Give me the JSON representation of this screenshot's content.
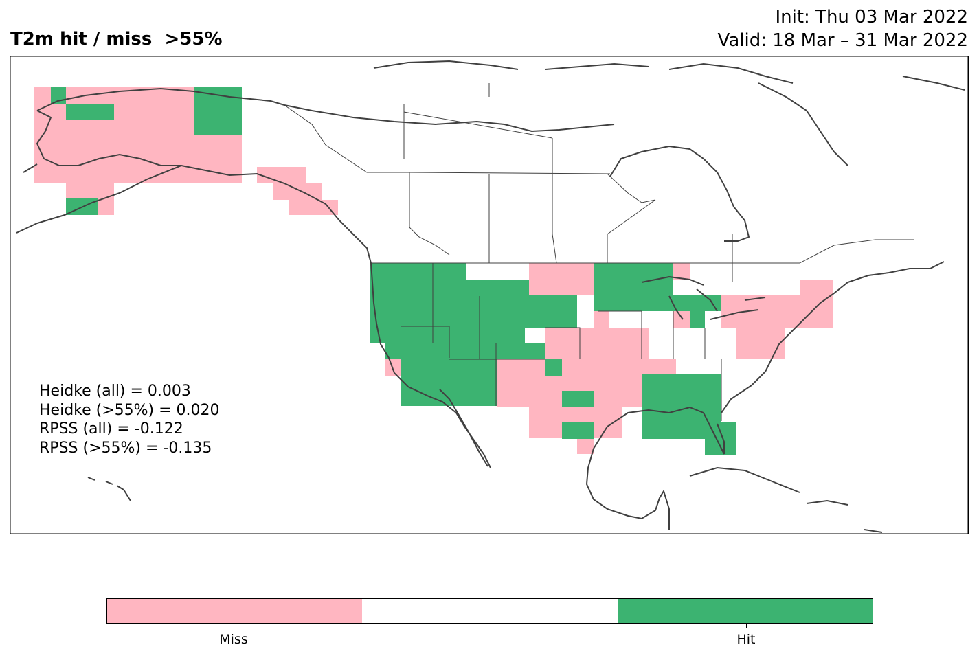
{
  "title": {
    "left": "T2m hit / miss  >55%",
    "init": "Init: Thu 03 Mar 2022",
    "valid": "Valid: 18 Mar – 31 Mar 2022"
  },
  "scores": [
    "Heidke (all) = 0.003",
    "Heidke (>55%) = 0.020",
    "RPSS (all) = -0.122",
    "RPSS (>55%) = -0.135"
  ],
  "legend": {
    "categories": [
      {
        "label": "Miss",
        "color": "#ffb6c1"
      },
      {
        "label": "",
        "color": "#ffffff"
      },
      {
        "label": "Hit",
        "color": "#3cb371"
      }
    ]
  },
  "colors": {
    "miss": "#ffb6c1",
    "hit": "#3cb371",
    "coast": "#404040"
  }
}
